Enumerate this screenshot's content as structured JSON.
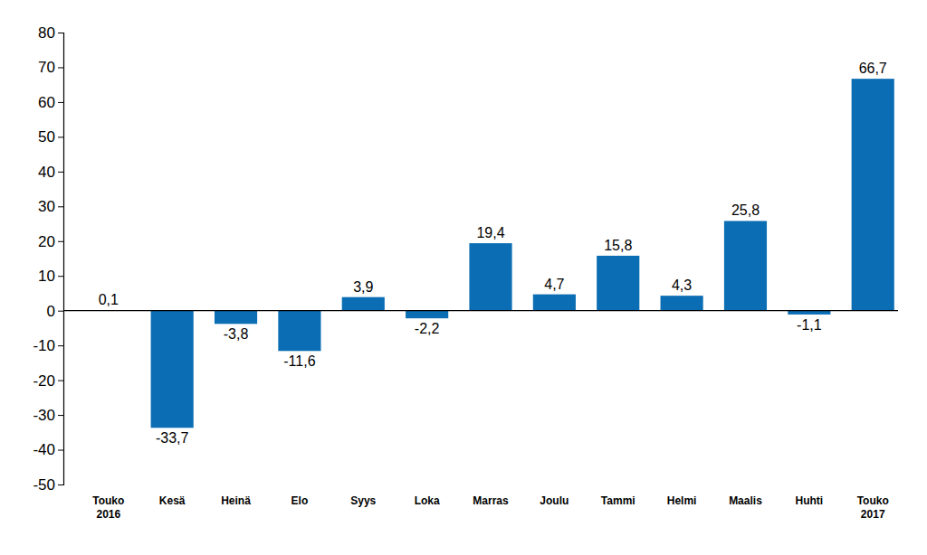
{
  "chart_data": {
    "type": "bar",
    "categories": [
      "Touko 2016",
      "Kesä",
      "Heinä",
      "Elo",
      "Syys",
      "Loka",
      "Marras",
      "Joulu",
      "Tammi",
      "Helmi",
      "Maalis",
      "Huhti",
      "Touko 2017"
    ],
    "values": [
      0.1,
      -33.7,
      -3.8,
      -11.6,
      3.9,
      -2.2,
      19.4,
      4.7,
      15.8,
      4.3,
      25.8,
      -1.1,
      66.7
    ],
    "value_labels": [
      "0,1",
      "-33,7",
      "-3,8",
      "-11,6",
      "3,9",
      "-2,2",
      "19,4",
      "4,7",
      "15,8",
      "4,3",
      "25,8",
      "-1,1",
      "66,7"
    ],
    "data_labels": true,
    "color": "#0b6db3",
    "ylim": [
      -50,
      80
    ],
    "yticks": [
      -50,
      -40,
      -30,
      -20,
      -10,
      0,
      10,
      20,
      30,
      40,
      50,
      60,
      70,
      80
    ],
    "grid": false
  }
}
